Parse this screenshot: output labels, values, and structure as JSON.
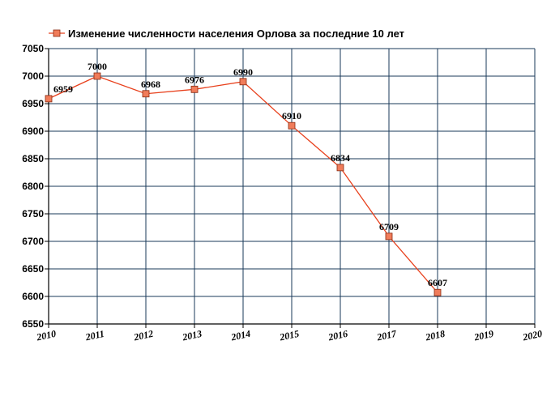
{
  "chart_data": {
    "type": "line",
    "title": "",
    "xlabel": "",
    "ylabel": "",
    "legend_position": "top-left",
    "grid": true,
    "x": [
      2010,
      2011,
      2012,
      2013,
      2014,
      2015,
      2016,
      2017,
      2018
    ],
    "xticks": [
      "2010",
      "2011",
      "2012",
      "2013",
      "2014",
      "2015",
      "2016",
      "2017",
      "2018",
      "2019",
      "2020"
    ],
    "xlim": [
      2010,
      2020
    ],
    "yticks": [
      7050,
      7000,
      6950,
      6900,
      6850,
      6800,
      6750,
      6700,
      6650,
      6600,
      6550
    ],
    "ylim": [
      6550,
      7050
    ],
    "series": [
      {
        "name": "Изменение численности населения Орлова за последние 10 лет",
        "values": [
          6959,
          7000,
          6968,
          6976,
          6990,
          6910,
          6834,
          6709,
          6607
        ],
        "labels": [
          "6959",
          "7000",
          "6968",
          "6976",
          "6990",
          "6910",
          "6834",
          "6709",
          "6607"
        ]
      }
    ],
    "colors": {
      "line": "#e8401c",
      "marker_fill": "#f07c5a",
      "marker_stroke": "#8a2a10",
      "grid": "#1a3a5a",
      "axis": "#000000"
    }
  }
}
